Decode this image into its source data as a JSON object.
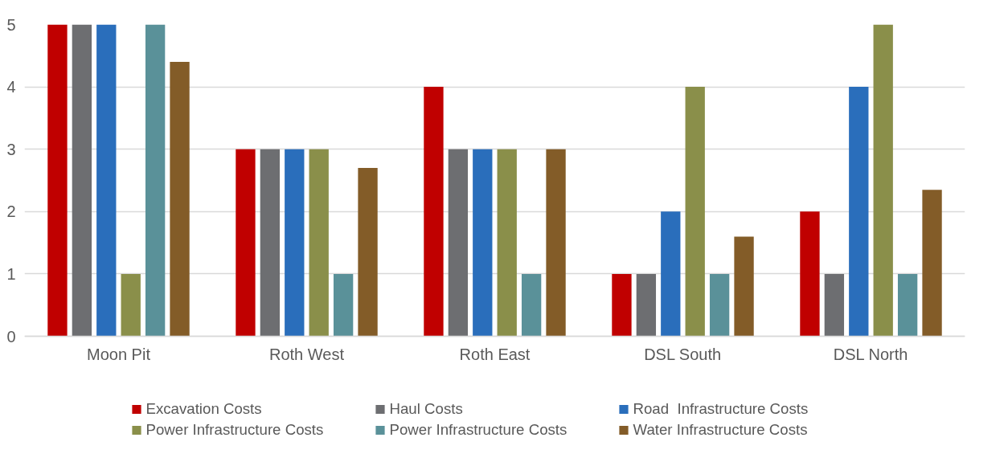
{
  "chart_data": {
    "type": "bar",
    "categories": [
      "Moon Pit",
      "Roth West",
      "Roth East",
      "DSL South",
      "DSL North"
    ],
    "series": [
      {
        "name": "Excavation Costs",
        "color": "#c00000",
        "values": [
          5,
          3,
          4,
          1,
          2
        ]
      },
      {
        "name": "Haul Costs",
        "color": "#6d6e71",
        "values": [
          5,
          3,
          3,
          1,
          1
        ]
      },
      {
        "name": "Road  Infrastructure Costs",
        "color": "#2a6ebb",
        "values": [
          5,
          3,
          3,
          2,
          4
        ]
      },
      {
        "name": "Power Infrastructure Costs",
        "color": "#8a8f4a",
        "values": [
          1,
          3,
          3,
          4,
          5
        ]
      },
      {
        "name": "Power Infrastructure Costs",
        "color": "#5a9199",
        "values": [
          5,
          1,
          1,
          1,
          1
        ]
      },
      {
        "name": "Water Infrastructure Costs",
        "color": "#835c28",
        "values": [
          4.4,
          2.7,
          3,
          1.6,
          2.35
        ]
      }
    ],
    "ylim": [
      0,
      5
    ],
    "yticks": [
      0,
      1,
      2,
      3,
      4,
      5
    ],
    "grid": "y",
    "legend": "bottom"
  }
}
